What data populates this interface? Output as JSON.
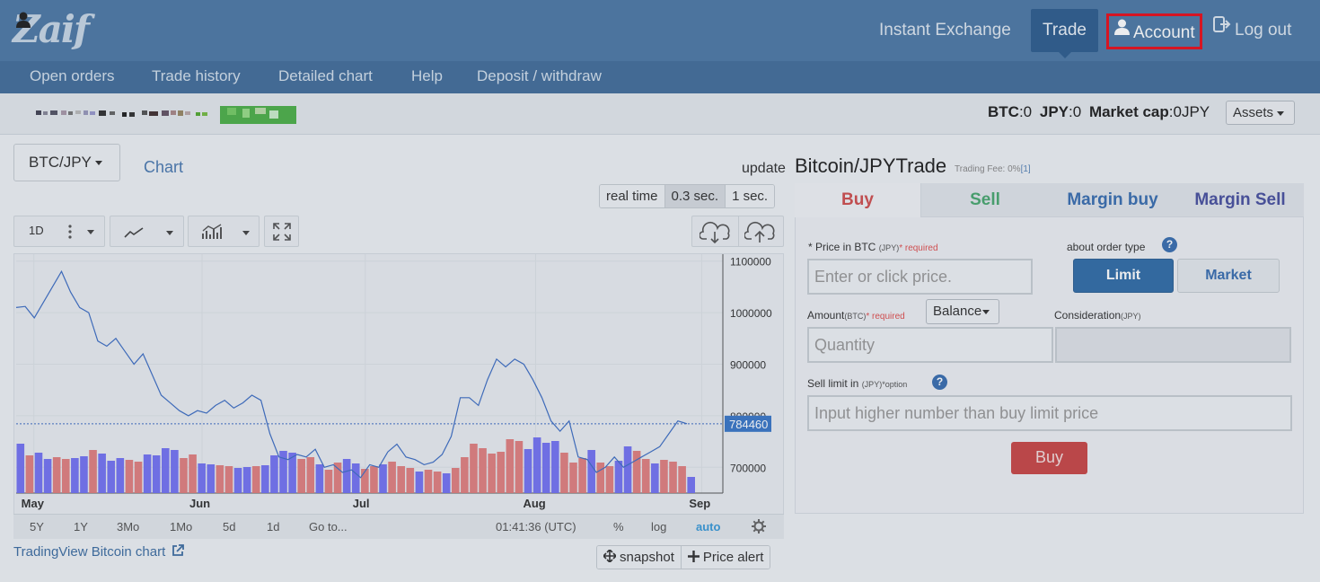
{
  "header": {
    "logo": "Zaif",
    "nav": [
      "Instant Exchange",
      "Trade",
      "Account",
      "Log out"
    ]
  },
  "subnav": [
    "Open orders",
    "Trade history",
    "Detailed chart",
    "Help",
    "Deposit / withdraw"
  ],
  "balances": {
    "btc_label": "BTC",
    "btc_value": ":0",
    "jpy_label": "JPY",
    "jpy_value": ":0",
    "mcap_label": "Market cap",
    "mcap_value": ":0JPY",
    "assets_button": "Assets"
  },
  "left": {
    "pair": "BTC/JPY",
    "chart_link": "Chart",
    "update_label": "update",
    "speed_options": [
      "real time",
      "0.3 sec.",
      "1 sec."
    ],
    "speed_selected": "0.3 sec.",
    "interval": "1D",
    "tradingview_link": "TradingView Bitcoin chart",
    "snapshot": "snapshot",
    "price_alert": "Price alert"
  },
  "timebar": {
    "ranges": [
      "5Y",
      "1Y",
      "3Mo",
      "1Mo",
      "5d",
      "1d",
      "Go to..."
    ],
    "clock": "01:41:36 (UTC)",
    "percent": "%",
    "log": "log",
    "auto": "auto"
  },
  "chart_data": {
    "type": "line",
    "x_ticks": [
      "May",
      "Jun",
      "Jul",
      "Aug",
      "Sep"
    ],
    "y_ticks": [
      1100000,
      1000000,
      900000,
      800000,
      700000
    ],
    "y_tick_labels": [
      "1100000",
      "1000000",
      "900000",
      "800000",
      "700000"
    ],
    "ylim": [
      650000,
      1110000
    ],
    "last_price": 784460,
    "last_price_label": "784460",
    "price": [
      1010000,
      1012000,
      990000,
      1020000,
      1050000,
      1080000,
      1040000,
      1010000,
      1000000,
      945000,
      935000,
      950000,
      925000,
      900000,
      920000,
      880000,
      840000,
      825000,
      810000,
      800000,
      810000,
      805000,
      820000,
      830000,
      815000,
      825000,
      840000,
      830000,
      765000,
      720000,
      715000,
      725000,
      720000,
      735000,
      700000,
      705000,
      690000,
      695000,
      680000,
      705000,
      700000,
      730000,
      745000,
      720000,
      715000,
      705000,
      710000,
      725000,
      760000,
      835000,
      835000,
      820000,
      870000,
      910000,
      895000,
      910000,
      900000,
      870000,
      835000,
      790000,
      770000,
      790000,
      720000,
      715000,
      690000,
      700000,
      720000,
      700000,
      710000,
      720000,
      730000,
      740000,
      765000,
      790000,
      784460
    ],
    "volume_up": [
      1,
      0,
      1,
      1,
      0,
      0,
      1,
      1,
      0,
      1,
      1,
      1,
      0,
      0,
      1,
      1,
      1,
      1,
      0,
      0,
      1,
      1,
      0,
      0,
      1,
      1,
      0,
      1,
      1,
      1,
      1,
      0,
      0,
      1,
      0,
      0,
      1,
      1,
      0,
      0,
      1,
      0,
      0,
      0,
      1,
      0,
      0,
      1,
      0,
      0,
      0,
      0,
      0,
      0,
      0,
      0,
      1,
      1,
      1,
      1,
      0,
      0,
      0,
      1,
      0,
      0,
      1,
      1,
      0,
      0,
      1,
      0,
      0,
      0,
      1
    ],
    "volume": [
      55,
      42,
      45,
      38,
      40,
      38,
      39,
      41,
      48,
      44,
      36,
      39,
      37,
      35,
      43,
      42,
      50,
      48,
      39,
      43,
      33,
      32,
      31,
      30,
      28,
      29,
      30,
      31,
      42,
      47,
      45,
      38,
      40,
      32,
      26,
      34,
      38,
      33,
      27,
      30,
      32,
      35,
      30,
      28,
      24,
      26,
      24,
      22,
      28,
      40,
      55,
      50,
      44,
      46,
      60,
      58,
      49,
      62,
      56,
      58,
      45,
      34,
      39,
      48,
      34,
      30,
      36,
      52,
      47,
      38,
      33,
      37,
      35,
      30,
      18
    ]
  },
  "order": {
    "title": "Bitcoin/JPYTrade",
    "fee": "Trading Fee: 0%",
    "fee_link": "[1]",
    "tabs": [
      "Buy",
      "Sell",
      "Margin buy",
      "Margin Sell"
    ],
    "price_label": "* Price in BTC ",
    "price_unit": "(JPY)",
    "required": "* required",
    "price_placeholder": "Enter or click price.",
    "order_type_label": "about order type",
    "limit": "Limit",
    "market": "Market",
    "amount_label": "Amount",
    "amount_unit": "(BTC)",
    "balance_button": "Balance",
    "consideration_label": "Consideration",
    "consideration_unit": "(JPY)",
    "quantity_placeholder": "Quantity",
    "sell_limit_label": "Sell limit in ",
    "sell_limit_unit": "(JPY)",
    "option": "*option",
    "sell_limit_placeholder": "Input higher number than buy limit price",
    "submit": "Buy"
  },
  "colors": {
    "topbar": "#4f7aa6",
    "subbar": "#456f9b",
    "buy": "#c94848",
    "sell": "#4aa870",
    "accent": "#336ea8",
    "line": "#3f6fc4",
    "vol_up": "#6f6ef2",
    "vol_down": "#e07a7a",
    "highlight_border": "#e8101c"
  }
}
